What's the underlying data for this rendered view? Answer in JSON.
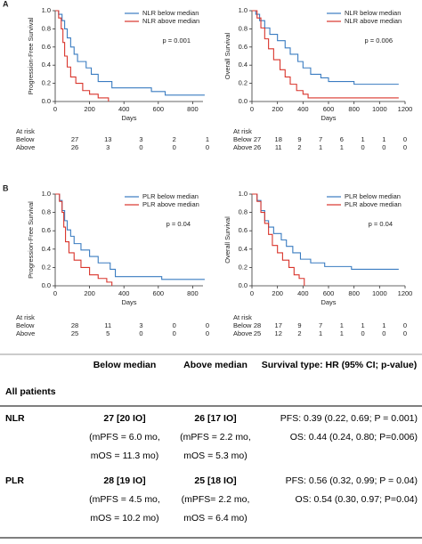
{
  "panel_labels": [
    "A",
    "B"
  ],
  "chart_data": [
    {
      "type": "line",
      "ylabel": "Progression-Free Survival",
      "xlabel": "Days",
      "annotation": "p = 0.001",
      "xlim": [
        0,
        860
      ],
      "xticks": [
        0,
        200,
        400,
        600,
        800
      ],
      "ylim": [
        0,
        1
      ],
      "yticks": [
        {
          "value": 0,
          "label": "0.0"
        },
        {
          "value": 0.2,
          "label": "0.2"
        },
        {
          "value": 0.4,
          "label": "0.4"
        },
        {
          "value": 0.6,
          "label": "0.6"
        },
        {
          "value": 0.8,
          "label": "0.8"
        },
        {
          "value": 1,
          "label": "1.0"
        }
      ],
      "series": [
        {
          "name": "NLR below median",
          "color": "#3a7cc1",
          "x": [
            0,
            20,
            40,
            55,
            70,
            90,
            110,
            130,
            180,
            210,
            250,
            330,
            560,
            640,
            870
          ],
          "values": [
            1,
            0.96,
            0.89,
            0.8,
            0.7,
            0.6,
            0.52,
            0.44,
            0.37,
            0.3,
            0.22,
            0.15,
            0.11,
            0.07,
            0.07
          ]
        },
        {
          "name": "NLR above median",
          "color": "#d9342b",
          "x": [
            0,
            20,
            35,
            45,
            55,
            70,
            90,
            120,
            160,
            200,
            250,
            310
          ],
          "values": [
            1,
            0.92,
            0.8,
            0.65,
            0.5,
            0.38,
            0.27,
            0.2,
            0.12,
            0.08,
            0.04,
            0
          ]
        }
      ],
      "at_risk": {
        "title": "At risk",
        "rows": [
          {
            "name": "Below",
            "values": [
              27,
              13,
              3,
              2,
              1
            ]
          },
          {
            "name": "Above",
            "values": [
              26,
              3,
              0,
              0,
              0
            ]
          }
        ]
      }
    },
    {
      "type": "line",
      "ylabel": "Overall Survival",
      "xlabel": "Days",
      "annotation": "p = 0.006",
      "xlim": [
        0,
        1200
      ],
      "xticks": [
        0,
        200,
        400,
        600,
        800,
        1000,
        1200
      ],
      "ylim": [
        0,
        1
      ],
      "yticks": [
        {
          "value": 0,
          "label": "0.0"
        },
        {
          "value": 0.2,
          "label": "0.2"
        },
        {
          "value": 0.4,
          "label": "0.4"
        },
        {
          "value": 0.6,
          "label": "0.6"
        },
        {
          "value": 0.8,
          "label": "0.8"
        },
        {
          "value": 1,
          "label": "1.0"
        }
      ],
      "series": [
        {
          "name": "NLR below median",
          "color": "#3a7cc1",
          "x": [
            0,
            30,
            60,
            100,
            140,
            200,
            260,
            300,
            360,
            400,
            460,
            540,
            600,
            800,
            1150
          ],
          "values": [
            1,
            0.96,
            0.89,
            0.81,
            0.74,
            0.67,
            0.59,
            0.52,
            0.44,
            0.37,
            0.3,
            0.26,
            0.22,
            0.19,
            0.19
          ]
        },
        {
          "name": "NLR above median",
          "color": "#d9342b",
          "x": [
            0,
            40,
            70,
            100,
            130,
            170,
            220,
            260,
            300,
            350,
            400,
            440,
            1150
          ],
          "values": [
            1,
            0.92,
            0.81,
            0.69,
            0.58,
            0.46,
            0.35,
            0.27,
            0.19,
            0.12,
            0.08,
            0.04,
            0.04
          ]
        }
      ],
      "at_risk": {
        "title": "At risk",
        "rows": [
          {
            "name": "Below",
            "values": [
              27,
              18,
              9,
              7,
              6,
              1,
              1,
              0
            ]
          },
          {
            "name": "Above",
            "values": [
              26,
              11,
              2,
              1,
              1,
              0,
              0,
              0
            ]
          }
        ]
      }
    },
    {
      "type": "line",
      "ylabel": "Progression-Free Survival",
      "xlabel": "Days",
      "annotation": "p = 0.04",
      "xlim": [
        0,
        860
      ],
      "xticks": [
        0,
        200,
        400,
        600,
        800
      ],
      "ylim": [
        0,
        1
      ],
      "yticks": [
        {
          "value": 0,
          "label": "0.0"
        },
        {
          "value": 0.2,
          "label": "0.2"
        },
        {
          "value": 0.4,
          "label": "0.4"
        },
        {
          "value": 0.6,
          "label": "0.6"
        },
        {
          "value": 0.8,
          "label": "0.8"
        },
        {
          "value": 1,
          "label": "1.0"
        }
      ],
      "series": [
        {
          "name": "PLR below median",
          "color": "#3a7cc1",
          "x": [
            0,
            25,
            40,
            55,
            70,
            90,
            110,
            150,
            200,
            250,
            320,
            350,
            620,
            870
          ],
          "values": [
            1,
            0.93,
            0.82,
            0.71,
            0.61,
            0.54,
            0.46,
            0.39,
            0.32,
            0.25,
            0.18,
            0.1,
            0.07,
            0.07
          ]
        },
        {
          "name": "PLR above median",
          "color": "#d9342b",
          "x": [
            0,
            25,
            40,
            50,
            60,
            80,
            110,
            150,
            200,
            250,
            300,
            330
          ],
          "values": [
            1,
            0.92,
            0.8,
            0.64,
            0.48,
            0.36,
            0.28,
            0.2,
            0.12,
            0.08,
            0.04,
            0
          ]
        }
      ],
      "at_risk": {
        "title": "At risk",
        "rows": [
          {
            "name": "Below",
            "values": [
              28,
              11,
              3,
              0,
              0
            ]
          },
          {
            "name": "Above",
            "values": [
              25,
              5,
              0,
              0,
              0
            ]
          }
        ]
      }
    },
    {
      "type": "line",
      "ylabel": "Overall Survival",
      "xlabel": "Days",
      "annotation": "p = 0.04",
      "xlim": [
        0,
        1200
      ],
      "xticks": [
        0,
        200,
        400,
        600,
        800,
        1000,
        1200
      ],
      "ylim": [
        0,
        1
      ],
      "yticks": [
        {
          "value": 0,
          "label": "0.0"
        },
        {
          "value": 0.2,
          "label": "0.2"
        },
        {
          "value": 0.4,
          "label": "0.4"
        },
        {
          "value": 0.6,
          "label": "0.6"
        },
        {
          "value": 0.8,
          "label": "0.8"
        },
        {
          "value": 1,
          "label": "1.0"
        }
      ],
      "series": [
        {
          "name": "PLR below median",
          "color": "#3a7cc1",
          "x": [
            0,
            40,
            70,
            100,
            130,
            170,
            230,
            270,
            320,
            380,
            460,
            570,
            780,
            1150
          ],
          "values": [
            1,
            0.93,
            0.82,
            0.71,
            0.64,
            0.57,
            0.5,
            0.43,
            0.36,
            0.29,
            0.25,
            0.21,
            0.18,
            0.18
          ]
        },
        {
          "name": "PLR above median",
          "color": "#d9342b",
          "x": [
            0,
            40,
            70,
            100,
            130,
            160,
            200,
            240,
            290,
            330,
            370,
            410
          ],
          "values": [
            1,
            0.92,
            0.8,
            0.68,
            0.56,
            0.44,
            0.36,
            0.28,
            0.2,
            0.12,
            0.08,
            0
          ]
        }
      ],
      "at_risk": {
        "title": "At risk",
        "rows": [
          {
            "name": "Below",
            "values": [
              28,
              17,
              9,
              7,
              1,
              1,
              1,
              0
            ]
          },
          {
            "name": "Above",
            "values": [
              25,
              12,
              2,
              1,
              1,
              0,
              0,
              0
            ]
          }
        ]
      }
    }
  ],
  "table": {
    "header": [
      "Below median",
      "Above median",
      "Survival type: HR (95% CI; p-value)"
    ],
    "section": "All patients",
    "rows": [
      {
        "label": "NLR",
        "cells": [
          [
            "27 [20 IO]",
            "(mPFS = 6.0 mo,",
            "mOS = 11.3 mo)"
          ],
          [
            "26 [17 IO]",
            "(mPFS = 2.2 mo,",
            "mOS = 5.3 mo)"
          ],
          [
            "PFS: 0.39 (0.22, 0.69; P = 0.001)",
            "OS: 0.44 (0.24, 0.80; P=0.006)"
          ]
        ]
      },
      {
        "label": "PLR",
        "cells": [
          [
            "28 [19 IO]",
            "(mPFS = 4.5 mo,",
            "mOS = 10.2 mo)"
          ],
          [
            "25 [18 IO]",
            "(mPFS= 2.2 mo,",
            "mOS = 6.4 mo)"
          ],
          [
            "PFS: 0.56 (0.32, 0.99; P = 0.04)",
            "OS: 0.54 (0.30, 0.97; P=0.04)"
          ]
        ]
      }
    ]
  }
}
